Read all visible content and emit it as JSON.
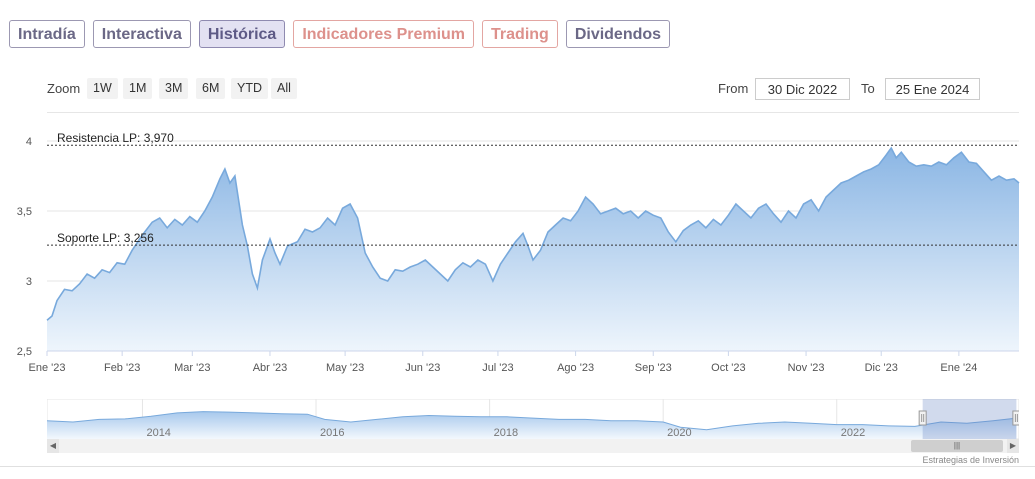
{
  "tabs": [
    "Intradía",
    "Interactiva",
    "Histórica",
    "Indicadores Premium",
    "Trading",
    "Dividendos"
  ],
  "zoom": {
    "label": "Zoom",
    "buttons": [
      "1W",
      "1M",
      "3M",
      "6M",
      "YTD",
      "All"
    ]
  },
  "range": {
    "from_label": "From",
    "from_value": "30 Dic 2022",
    "to_label": "To",
    "to_value": "25 Ene 2024"
  },
  "colors": {
    "line": "#78a9dc",
    "fill_top": "#8bb6e4",
    "fill_bottom": "#eef5fc",
    "tab_text": "#6b6886",
    "tab_premium": "#dd918c",
    "active_tab_bg": "#e3e1f2"
  },
  "chart_data": {
    "type": "area",
    "ylim": [
      2.5,
      4.15
    ],
    "yticks": [
      "2,5",
      "3",
      "3,5",
      "4"
    ],
    "ytick_values": [
      2.5,
      3.0,
      3.5,
      4.0
    ],
    "x_start": "2023-01-02",
    "x_end": "2024-01-25",
    "xticks": [
      {
        "label": "Ene '23",
        "date": "2023-01-02"
      },
      {
        "label": "Feb '23",
        "date": "2023-02-01"
      },
      {
        "label": "Mar '23",
        "date": "2023-03-01"
      },
      {
        "label": "Abr '23",
        "date": "2023-04-01"
      },
      {
        "label": "May '23",
        "date": "2023-05-01"
      },
      {
        "label": "Jun '23",
        "date": "2023-06-01"
      },
      {
        "label": "Jul '23",
        "date": "2023-07-01"
      },
      {
        "label": "Ago '23",
        "date": "2023-08-01"
      },
      {
        "label": "Sep '23",
        "date": "2023-09-01"
      },
      {
        "label": "Oct '23",
        "date": "2023-10-01"
      },
      {
        "label": "Nov '23",
        "date": "2023-11-01"
      },
      {
        "label": "Dic '23",
        "date": "2023-12-01"
      },
      {
        "label": "Ene '24",
        "date": "2024-01-01"
      }
    ],
    "series": [
      {
        "points": [
          [
            "2023-01-02",
            2.72
          ],
          [
            "2023-01-04",
            2.75
          ],
          [
            "2023-01-06",
            2.86
          ],
          [
            "2023-01-09",
            2.94
          ],
          [
            "2023-01-12",
            2.93
          ],
          [
            "2023-01-15",
            2.98
          ],
          [
            "2023-01-18",
            3.05
          ],
          [
            "2023-01-21",
            3.02
          ],
          [
            "2023-01-24",
            3.08
          ],
          [
            "2023-01-27",
            3.06
          ],
          [
            "2023-01-30",
            3.13
          ],
          [
            "2023-02-02",
            3.12
          ],
          [
            "2023-02-05",
            3.22
          ],
          [
            "2023-02-08",
            3.3
          ],
          [
            "2023-02-10",
            3.35
          ],
          [
            "2023-02-13",
            3.42
          ],
          [
            "2023-02-16",
            3.45
          ],
          [
            "2023-02-19",
            3.38
          ],
          [
            "2023-02-22",
            3.44
          ],
          [
            "2023-02-25",
            3.4
          ],
          [
            "2023-02-28",
            3.46
          ],
          [
            "2023-03-03",
            3.42
          ],
          [
            "2023-03-06",
            3.5
          ],
          [
            "2023-03-09",
            3.6
          ],
          [
            "2023-03-12",
            3.73
          ],
          [
            "2023-03-14",
            3.8
          ],
          [
            "2023-03-16",
            3.7
          ],
          [
            "2023-03-18",
            3.75
          ],
          [
            "2023-03-21",
            3.4
          ],
          [
            "2023-03-23",
            3.25
          ],
          [
            "2023-03-25",
            3.05
          ],
          [
            "2023-03-27",
            2.95
          ],
          [
            "2023-03-29",
            3.15
          ],
          [
            "2023-04-01",
            3.3
          ],
          [
            "2023-04-03",
            3.2
          ],
          [
            "2023-04-05",
            3.12
          ],
          [
            "2023-04-08",
            3.25
          ],
          [
            "2023-04-12",
            3.28
          ],
          [
            "2023-04-15",
            3.37
          ],
          [
            "2023-04-18",
            3.35
          ],
          [
            "2023-04-21",
            3.38
          ],
          [
            "2023-04-24",
            3.45
          ],
          [
            "2023-04-27",
            3.4
          ],
          [
            "2023-04-30",
            3.52
          ],
          [
            "2023-05-03",
            3.55
          ],
          [
            "2023-05-06",
            3.45
          ],
          [
            "2023-05-09",
            3.2
          ],
          [
            "2023-05-12",
            3.1
          ],
          [
            "2023-05-15",
            3.02
          ],
          [
            "2023-05-18",
            3.0
          ],
          [
            "2023-05-21",
            3.08
          ],
          [
            "2023-05-24",
            3.07
          ],
          [
            "2023-05-27",
            3.1
          ],
          [
            "2023-05-30",
            3.12
          ],
          [
            "2023-06-02",
            3.15
          ],
          [
            "2023-06-05",
            3.1
          ],
          [
            "2023-06-08",
            3.05
          ],
          [
            "2023-06-11",
            3.0
          ],
          [
            "2023-06-14",
            3.08
          ],
          [
            "2023-06-17",
            3.13
          ],
          [
            "2023-06-20",
            3.1
          ],
          [
            "2023-06-23",
            3.15
          ],
          [
            "2023-06-26",
            3.12
          ],
          [
            "2023-06-29",
            3.0
          ],
          [
            "2023-07-02",
            3.12
          ],
          [
            "2023-07-05",
            3.2
          ],
          [
            "2023-07-08",
            3.28
          ],
          [
            "2023-07-11",
            3.34
          ],
          [
            "2023-07-13",
            3.25
          ],
          [
            "2023-07-15",
            3.15
          ],
          [
            "2023-07-18",
            3.22
          ],
          [
            "2023-07-21",
            3.35
          ],
          [
            "2023-07-24",
            3.4
          ],
          [
            "2023-07-27",
            3.45
          ],
          [
            "2023-07-30",
            3.43
          ],
          [
            "2023-08-02",
            3.5
          ],
          [
            "2023-08-05",
            3.6
          ],
          [
            "2023-08-08",
            3.55
          ],
          [
            "2023-08-11",
            3.48
          ],
          [
            "2023-08-14",
            3.5
          ],
          [
            "2023-08-17",
            3.52
          ],
          [
            "2023-08-20",
            3.48
          ],
          [
            "2023-08-23",
            3.5
          ],
          [
            "2023-08-26",
            3.45
          ],
          [
            "2023-08-29",
            3.5
          ],
          [
            "2023-09-01",
            3.47
          ],
          [
            "2023-09-04",
            3.45
          ],
          [
            "2023-09-07",
            3.35
          ],
          [
            "2023-09-10",
            3.28
          ],
          [
            "2023-09-13",
            3.36
          ],
          [
            "2023-09-16",
            3.4
          ],
          [
            "2023-09-19",
            3.43
          ],
          [
            "2023-09-22",
            3.38
          ],
          [
            "2023-09-25",
            3.44
          ],
          [
            "2023-09-28",
            3.4
          ],
          [
            "2023-10-01",
            3.47
          ],
          [
            "2023-10-04",
            3.55
          ],
          [
            "2023-10-07",
            3.5
          ],
          [
            "2023-10-10",
            3.45
          ],
          [
            "2023-10-13",
            3.52
          ],
          [
            "2023-10-16",
            3.55
          ],
          [
            "2023-10-19",
            3.48
          ],
          [
            "2023-10-22",
            3.42
          ],
          [
            "2023-10-25",
            3.5
          ],
          [
            "2023-10-28",
            3.45
          ],
          [
            "2023-10-31",
            3.55
          ],
          [
            "2023-11-03",
            3.58
          ],
          [
            "2023-11-06",
            3.5
          ],
          [
            "2023-11-09",
            3.6
          ],
          [
            "2023-11-12",
            3.65
          ],
          [
            "2023-11-15",
            3.7
          ],
          [
            "2023-11-18",
            3.72
          ],
          [
            "2023-11-21",
            3.75
          ],
          [
            "2023-11-24",
            3.78
          ],
          [
            "2023-11-27",
            3.8
          ],
          [
            "2023-11-30",
            3.83
          ],
          [
            "2023-12-03",
            3.9
          ],
          [
            "2023-12-05",
            3.95
          ],
          [
            "2023-12-07",
            3.88
          ],
          [
            "2023-12-09",
            3.92
          ],
          [
            "2023-12-12",
            3.85
          ],
          [
            "2023-12-15",
            3.82
          ],
          [
            "2023-12-18",
            3.83
          ],
          [
            "2023-12-21",
            3.82
          ],
          [
            "2023-12-24",
            3.85
          ],
          [
            "2023-12-27",
            3.83
          ],
          [
            "2023-12-30",
            3.88
          ],
          [
            "2024-01-02",
            3.92
          ],
          [
            "2024-01-05",
            3.85
          ],
          [
            "2024-01-08",
            3.84
          ],
          [
            "2024-01-11",
            3.78
          ],
          [
            "2024-01-14",
            3.72
          ],
          [
            "2024-01-17",
            3.75
          ],
          [
            "2024-01-20",
            3.72
          ],
          [
            "2024-01-23",
            3.73
          ],
          [
            "2024-01-25",
            3.7
          ]
        ]
      }
    ],
    "plotlines": [
      {
        "label": "Resistencia LP: 3,970",
        "value": 3.97
      },
      {
        "label": "Soporte LP: 3,256",
        "value": 3.256
      }
    ]
  },
  "navigator": {
    "years": [
      "2014",
      "2016",
      "2018",
      "2020",
      "2022"
    ],
    "year_values": [
      2014,
      2016,
      2018,
      2020,
      2022
    ],
    "range": [
      2012.9,
      2024.1
    ],
    "selection": [
      2022.99,
      2024.07
    ],
    "points": [
      [
        2012.9,
        0.55
      ],
      [
        2013.2,
        0.5
      ],
      [
        2013.5,
        0.6
      ],
      [
        2013.8,
        0.62
      ],
      [
        2014.1,
        0.72
      ],
      [
        2014.4,
        0.85
      ],
      [
        2014.7,
        0.9
      ],
      [
        2015.0,
        0.88
      ],
      [
        2015.3,
        0.85
      ],
      [
        2015.6,
        0.82
      ],
      [
        2015.9,
        0.8
      ],
      [
        2016.1,
        0.6
      ],
      [
        2016.4,
        0.5
      ],
      [
        2016.7,
        0.6
      ],
      [
        2017.0,
        0.7
      ],
      [
        2017.3,
        0.75
      ],
      [
        2017.6,
        0.72
      ],
      [
        2017.9,
        0.7
      ],
      [
        2018.2,
        0.7
      ],
      [
        2018.5,
        0.65
      ],
      [
        2018.8,
        0.6
      ],
      [
        2019.1,
        0.6
      ],
      [
        2019.4,
        0.55
      ],
      [
        2019.7,
        0.55
      ],
      [
        2020.0,
        0.5
      ],
      [
        2020.2,
        0.3
      ],
      [
        2020.5,
        0.2
      ],
      [
        2020.8,
        0.35
      ],
      [
        2021.1,
        0.45
      ],
      [
        2021.4,
        0.5
      ],
      [
        2021.7,
        0.45
      ],
      [
        2022.0,
        0.4
      ],
      [
        2022.3,
        0.4
      ],
      [
        2022.6,
        0.35
      ],
      [
        2022.9,
        0.33
      ],
      [
        2023.2,
        0.5
      ],
      [
        2023.5,
        0.45
      ],
      [
        2023.8,
        0.55
      ],
      [
        2024.07,
        0.65
      ]
    ]
  },
  "credits": "Estrategias de Inversión"
}
